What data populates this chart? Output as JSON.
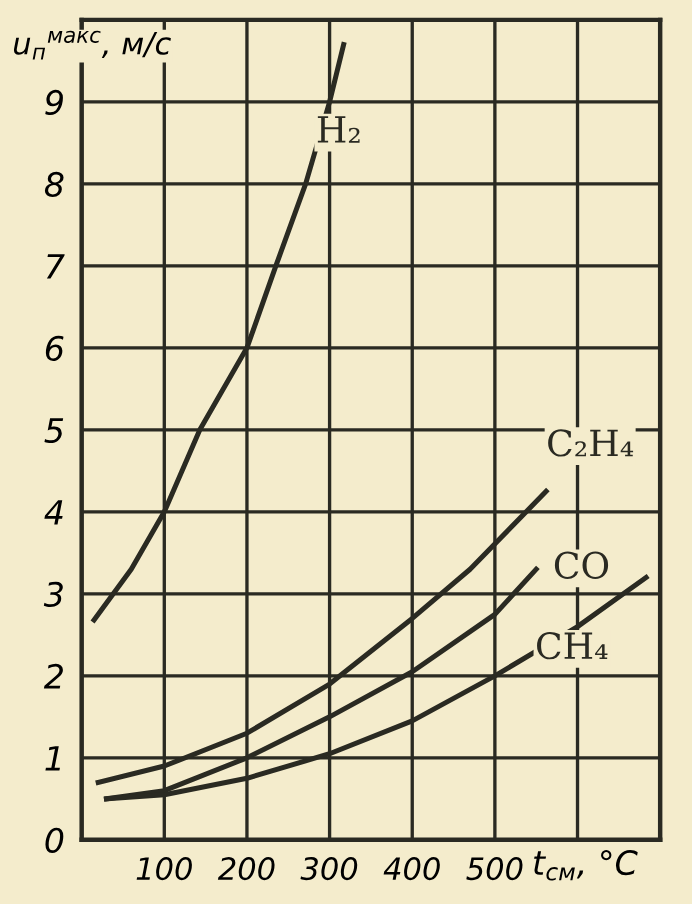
{
  "chart_data": {
    "type": "line",
    "xlabel": "t$_{см}$, °C",
    "ylabel": "u$_{п}$$^{макс}$, м/с",
    "xlim": [
      0,
      700
    ],
    "ylim": [
      0,
      10
    ],
    "xticks": [
      {
        "value": 0,
        "label": null
      },
      100,
      200,
      300,
      400,
      500,
      {
        "value": 600,
        "label": null
      },
      {
        "value": 700,
        "label": null
      }
    ],
    "yticks": [
      0,
      1,
      2,
      3,
      4,
      5,
      6,
      7,
      8,
      9,
      {
        "value": 10,
        "label": null
      }
    ],
    "grid": true,
    "legend": false,
    "marker": "none",
    "line_style": "solid",
    "series": [
      {
        "name": "H₂",
        "color": "#2a2a22",
        "x": [
          15,
          60,
          100,
          143,
          200,
          235,
          271,
          300,
          317
        ],
        "values": [
          2.68,
          3.3,
          4.0,
          5.0,
          6.0,
          7.0,
          8.0,
          9.0,
          9.7
        ]
      },
      {
        "name": "C₂H₄",
        "color": "#2a2a22",
        "x": [
          20,
          100,
          200,
          300,
          400,
          470,
          562
        ],
        "values": [
          0.7,
          0.9,
          1.3,
          1.9,
          2.7,
          3.3,
          4.25
        ]
      },
      {
        "name": "CO",
        "color": "#2a2a22",
        "x": [
          30,
          100,
          200,
          300,
          400,
          500,
          550
        ],
        "values": [
          0.5,
          0.6,
          1.0,
          1.5,
          2.05,
          2.75,
          3.3
        ]
      },
      {
        "name": "CH₄",
        "color": "#2a2a22",
        "x": [
          30,
          100,
          200,
          300,
          400,
          500,
          600,
          683
        ],
        "values": [
          0.5,
          0.55,
          0.75,
          1.05,
          1.45,
          2.0,
          2.6,
          3.2
        ]
      }
    ]
  }
}
